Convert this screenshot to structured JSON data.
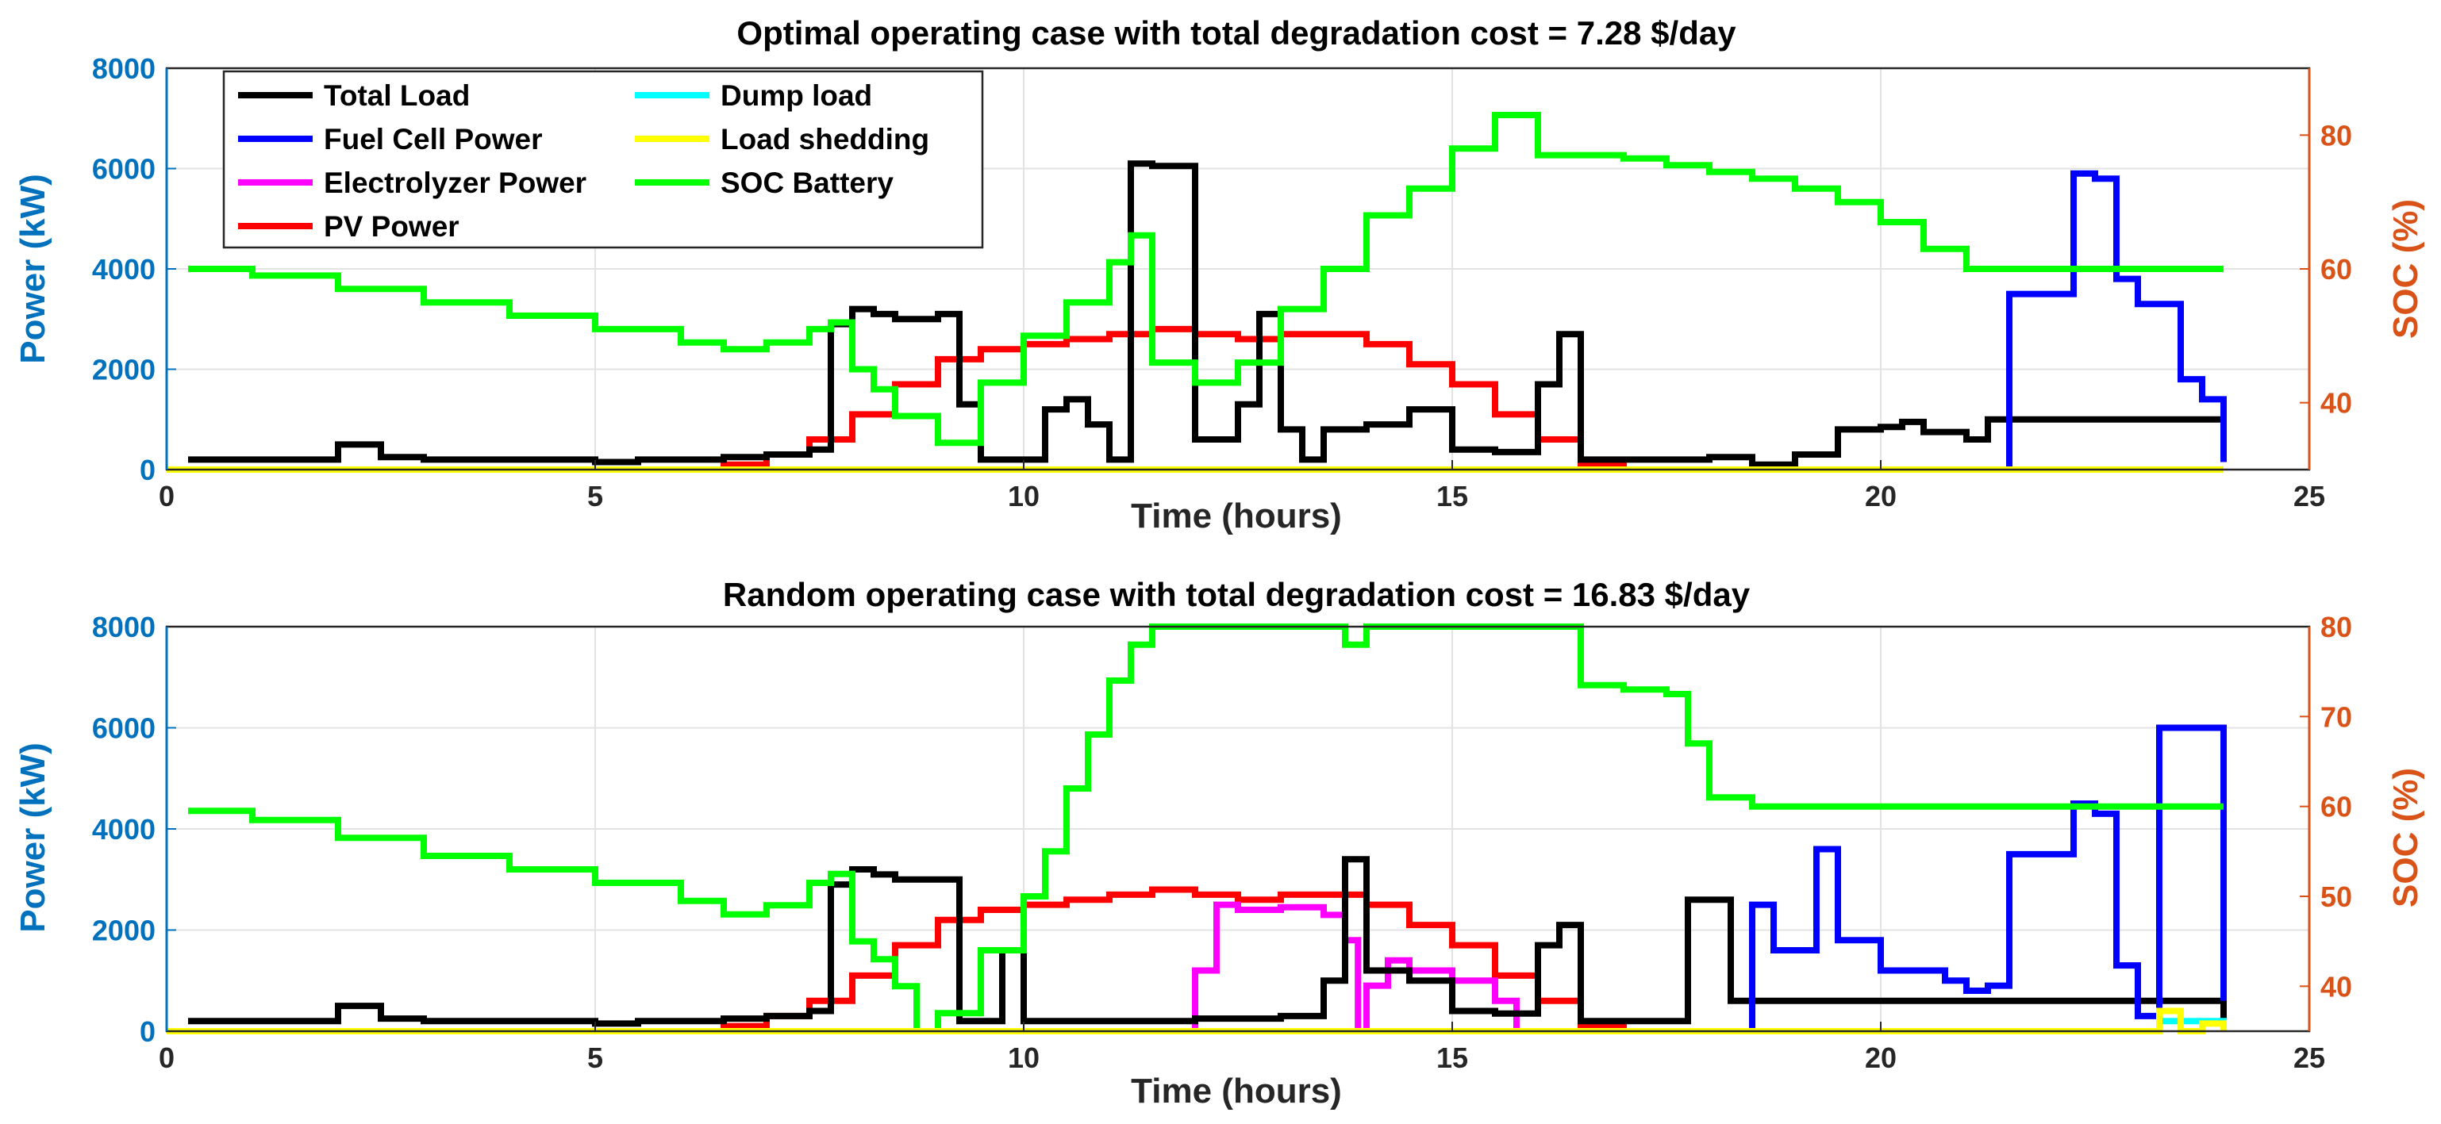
{
  "chart_data": [
    {
      "type": "line",
      "step": true,
      "title": "Optimal operating case with total degradation cost =  7.28 $/day",
      "xlabel": "Time (hours)",
      "ylabel": "Power (kW)",
      "ylabel_right": "SOC (%)",
      "xlim": [
        0,
        25
      ],
      "ylim": [
        0,
        8000
      ],
      "ylim_right": [
        30,
        90
      ],
      "xticks": [
        "0",
        "5",
        "10",
        "15",
        "20",
        "25"
      ],
      "yticks": [
        "0",
        "2000",
        "4000",
        "6000",
        "8000"
      ],
      "yticks_right": [
        "40",
        "60",
        "80"
      ],
      "grid": true,
      "legend": {
        "placement": "top-left",
        "entries": [
          "Total Load",
          "Fuel Cell Power",
          "Electrolyzer Power",
          "PV Power",
          "Dump load",
          "Load shedding",
          "SOC Battery"
        ]
      },
      "series": [
        {
          "name": "Total Load",
          "color": "#000000",
          "axis": "left",
          "x": [
            0.25,
            1,
            1.5,
            2,
            2.5,
            3,
            3.5,
            4,
            4.5,
            5,
            5.5,
            6,
            6.5,
            7,
            7.5,
            7.75,
            8,
            8.25,
            8.5,
            9,
            9.25,
            9.5,
            10,
            10.25,
            10.5,
            10.75,
            11,
            11.25,
            11.5,
            12,
            12.5,
            12.75,
            13,
            13.25,
            13.5,
            14,
            14.5,
            15,
            15.5,
            16,
            16.25,
            16.5,
            17,
            17.5,
            18,
            18.5,
            19,
            19.5,
            20,
            20.25,
            20.5,
            21,
            21.25,
            24
          ],
          "values": [
            200,
            200,
            200,
            500,
            250,
            200,
            200,
            200,
            200,
            150,
            200,
            200,
            250,
            300,
            400,
            2900,
            3200,
            3100,
            3000,
            3100,
            1300,
            200,
            200,
            1200,
            1400,
            900,
            200,
            6100,
            6050,
            600,
            1300,
            3100,
            800,
            200,
            800,
            900,
            1200,
            400,
            350,
            1700,
            2700,
            200,
            200,
            200,
            250,
            100,
            300,
            800,
            850,
            950,
            750,
            600,
            1000,
            1000
          ]
        },
        {
          "name": "Fuel Cell Power",
          "color": "#0000FF",
          "axis": "left",
          "x": [
            0,
            21.25,
            21.5,
            22,
            22.25,
            22.5,
            22.75,
            23,
            23.5,
            23.75,
            24
          ],
          "values": [
            0,
            0,
            3500,
            3500,
            5900,
            5800,
            3800,
            3300,
            1800,
            1400,
            150
          ]
        },
        {
          "name": "Electrolyzer Power",
          "color": "#FF00FF",
          "axis": "left",
          "x": [
            0,
            24
          ],
          "values": [
            0,
            0
          ]
        },
        {
          "name": "PV Power",
          "color": "#FF0000",
          "axis": "left",
          "x": [
            0,
            6,
            6.5,
            7,
            7.5,
            8,
            8.5,
            9,
            9.5,
            10,
            10.5,
            11,
            11.5,
            12,
            12.5,
            13,
            13.5,
            14,
            14.5,
            15,
            15.5,
            16,
            16.5,
            17
          ],
          "values": [
            0,
            0,
            100,
            300,
            600,
            1100,
            1700,
            2200,
            2400,
            2500,
            2600,
            2700,
            2800,
            2700,
            2600,
            2700,
            2700,
            2500,
            2100,
            1700,
            1100,
            600,
            100,
            0
          ]
        },
        {
          "name": "Dump load",
          "color": "#00FFFF",
          "axis": "left",
          "x": [
            0,
            24
          ],
          "values": [
            0,
            0
          ]
        },
        {
          "name": "Load shedding",
          "color": "#FFFF00",
          "axis": "left",
          "x": [
            0,
            24
          ],
          "values": [
            0,
            0
          ]
        },
        {
          "name": "SOC Battery",
          "color": "#00FF00",
          "axis": "right",
          "x": [
            0.25,
            1,
            2,
            3,
            4,
            5,
            6,
            6.5,
            7,
            7.5,
            7.75,
            8,
            8.25,
            8.5,
            9,
            9.5,
            10,
            10.5,
            11,
            11.25,
            11.5,
            12,
            12.5,
            13,
            13.5,
            14,
            14.5,
            15,
            15.5,
            16,
            16.5,
            17,
            17.5,
            18,
            18.5,
            19,
            19.5,
            20,
            20.5,
            21,
            21.5,
            22,
            22.5,
            23,
            23.5,
            24
          ],
          "values": [
            60,
            59,
            57,
            55,
            53,
            51,
            49,
            48,
            49,
            51,
            52,
            45,
            42,
            38,
            34,
            43,
            50,
            55,
            61,
            65,
            46,
            43,
            46,
            54,
            60,
            68,
            72,
            78,
            83,
            77,
            77,
            76.5,
            75.5,
            74.5,
            73.5,
            72,
            70,
            67,
            63,
            60,
            60,
            60,
            60,
            60,
            60,
            60
          ]
        }
      ]
    },
    {
      "type": "line",
      "step": true,
      "title": "Random operating case with total degradation cost = 16.83 $/day",
      "xlabel": "Time (hours)",
      "ylabel": "Power (kW)",
      "ylabel_right": "SOC (%)",
      "xlim": [
        0,
        25
      ],
      "ylim": [
        0,
        8000
      ],
      "ylim_right": [
        35,
        80
      ],
      "xticks": [
        "0",
        "5",
        "10",
        "15",
        "20",
        "25"
      ],
      "yticks": [
        "0",
        "2000",
        "4000",
        "6000",
        "8000"
      ],
      "yticks_right": [
        "40",
        "50",
        "60",
        "70",
        "80"
      ],
      "grid": true,
      "series": [
        {
          "name": "Total Load",
          "color": "#000000",
          "axis": "left",
          "x": [
            0.25,
            1,
            1.5,
            2,
            2.5,
            3,
            3.5,
            4,
            4.5,
            5,
            5.5,
            6,
            6.5,
            7,
            7.5,
            7.75,
            8,
            8.25,
            8.5,
            9,
            9.25,
            9.5,
            9.75,
            10,
            10.25,
            10.5,
            11,
            11.5,
            12,
            12.5,
            13,
            13.5,
            13.75,
            14,
            14.5,
            15,
            15.5,
            16,
            16.25,
            16.5,
            17,
            17.5,
            17.75,
            18,
            18.25,
            24
          ],
          "values": [
            200,
            200,
            200,
            500,
            250,
            200,
            200,
            200,
            200,
            150,
            200,
            200,
            250,
            300,
            400,
            2900,
            3200,
            3100,
            3000,
            3000,
            200,
            200,
            1600,
            200,
            200,
            200,
            200,
            200,
            250,
            250,
            300,
            1000,
            3400,
            1200,
            1000,
            400,
            350,
            1700,
            2100,
            200,
            200,
            200,
            2600,
            2600,
            600,
            0
          ]
        },
        {
          "name": "Fuel Cell Power",
          "color": "#0000FF",
          "axis": "left",
          "x": [
            0,
            18.25,
            18.5,
            18.75,
            19.25,
            19.5,
            20,
            20.5,
            20.75,
            21,
            21.25,
            21.5,
            22,
            22.25,
            22.5,
            22.75,
            23,
            23.25,
            24
          ],
          "values": [
            0,
            0,
            2500,
            1600,
            3600,
            1800,
            1200,
            1200,
            1000,
            800,
            900,
            3500,
            3500,
            4500,
            4300,
            1300,
            300,
            6000,
            600
          ]
        },
        {
          "name": "Electrolyzer Power",
          "color": "#FF00FF",
          "axis": "left",
          "x": [
            0,
            11.75,
            12,
            12.25,
            12.5,
            13,
            13.5,
            13.75,
            13.9,
            14,
            14.25,
            14.5,
            15,
            15.5,
            15.75
          ],
          "values": [
            0,
            0,
            1200,
            2500,
            2400,
            2450,
            2300,
            1800,
            0,
            900,
            1400,
            1200,
            1000,
            600,
            0
          ]
        },
        {
          "name": "PV Power",
          "color": "#FF0000",
          "axis": "left",
          "x": [
            0,
            6,
            6.5,
            7,
            7.5,
            8,
            8.5,
            9,
            9.5,
            10,
            10.5,
            11,
            11.5,
            12,
            12.5,
            13,
            13.5,
            14,
            14.5,
            15,
            15.5,
            16,
            16.5,
            17
          ],
          "values": [
            0,
            0,
            100,
            300,
            600,
            1100,
            1700,
            2200,
            2400,
            2500,
            2600,
            2700,
            2800,
            2700,
            2600,
            2700,
            2700,
            2500,
            2100,
            1700,
            1100,
            600,
            100,
            0
          ]
        },
        {
          "name": "Dump load",
          "color": "#00FFFF",
          "axis": "left",
          "x": [
            0,
            23,
            23.25,
            24
          ],
          "values": [
            0,
            0,
            200,
            0
          ]
        },
        {
          "name": "Load shedding",
          "color": "#FFFF00",
          "axis": "left",
          "x": [
            0,
            23,
            23.25,
            23.5,
            23.75,
            24
          ],
          "values": [
            0,
            0,
            400,
            0,
            150,
            0
          ]
        },
        {
          "name": "SOC Battery",
          "color": "#00FF00",
          "axis": "right",
          "x": [
            0.25,
            1,
            2,
            3,
            4,
            5,
            6,
            6.5,
            7,
            7.5,
            7.75,
            8,
            8.25,
            8.5,
            8.75,
            9,
            9.5,
            10,
            10.25,
            10.5,
            10.75,
            11,
            11.25,
            11.5,
            12,
            13.5,
            13.75,
            14,
            16,
            16.5,
            17,
            17.5,
            17.75,
            18,
            18.5,
            24
          ],
          "values": [
            59.5,
            58.5,
            56.5,
            54.5,
            53,
            51.5,
            49.5,
            48,
            49,
            51.5,
            52.5,
            45,
            43,
            40,
            35,
            37,
            44,
            50,
            55,
            62,
            68,
            74,
            78,
            80,
            80,
            80,
            78,
            80,
            80,
            73.5,
            73,
            72.5,
            67,
            61,
            60,
            60
          ]
        }
      ]
    }
  ]
}
